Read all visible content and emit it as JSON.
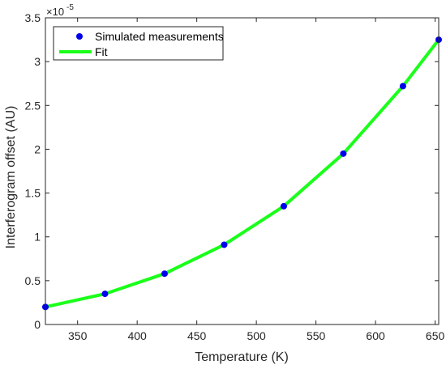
{
  "chart_data": {
    "type": "line",
    "xlabel": "Temperature (K)",
    "ylabel": "Interferogram offset (AU)",
    "y_exponent_base": "×10",
    "y_exponent_power": "-5",
    "xlim": [
      323,
      653
    ],
    "ylim": [
      0,
      3.5
    ],
    "x_ticks": [
      350,
      400,
      450,
      500,
      550,
      600,
      650
    ],
    "y_ticks": [
      0,
      0.5,
      1,
      1.5,
      2,
      2.5,
      3,
      3.5
    ],
    "grid": false,
    "legend_position": "top-left",
    "series": [
      {
        "name": "Simulated measurements",
        "style": "markers",
        "color": "#0000ee",
        "x": [
          323,
          373,
          423,
          473,
          523,
          573,
          623,
          653
        ],
        "y": [
          0.2,
          0.35,
          0.58,
          0.91,
          1.35,
          1.95,
          2.72,
          3.25
        ]
      },
      {
        "name": "Fit",
        "style": "line",
        "color": "#1aff1a",
        "x": [
          323,
          373,
          423,
          473,
          523,
          573,
          623,
          653
        ],
        "y": [
          0.2,
          0.35,
          0.58,
          0.91,
          1.35,
          1.95,
          2.72,
          3.25
        ]
      }
    ]
  }
}
